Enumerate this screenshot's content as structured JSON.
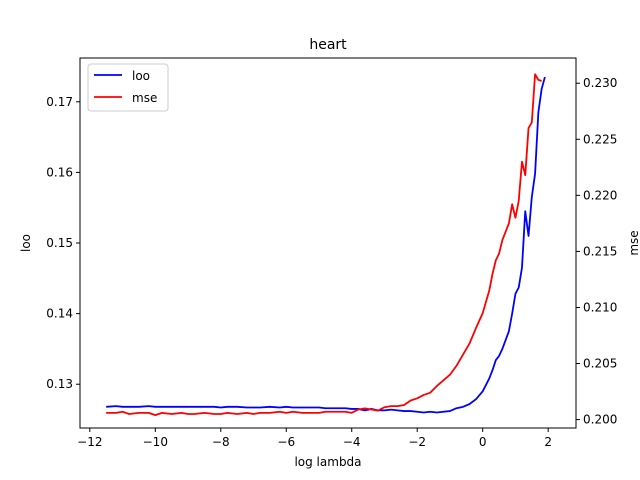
{
  "chart_data": {
    "type": "line",
    "title": "heart",
    "xlabel": "log lambda",
    "ylabel_left": "loo",
    "ylabel_right": "mse",
    "xlim": [
      -12.3,
      2.85
    ],
    "ylim_left": [
      0.1238,
      0.1762
    ],
    "ylim_right": [
      0.19925,
      0.23225
    ],
    "x_ticks": [
      -12,
      -10,
      -8,
      -6,
      -4,
      -2,
      0,
      2
    ],
    "x_tick_labels": [
      "−12",
      "−10",
      "−8",
      "−6",
      "−4",
      "−2",
      "0",
      "2"
    ],
    "y_left_ticks": [
      0.13,
      0.14,
      0.15,
      0.16,
      0.17
    ],
    "y_left_tick_labels": [
      "0.13",
      "0.14",
      "0.15",
      "0.16",
      "0.17"
    ],
    "y_right_ticks": [
      0.2,
      0.205,
      0.21,
      0.215,
      0.22,
      0.225,
      0.23
    ],
    "y_right_tick_labels": [
      "0.200",
      "0.205",
      "0.210",
      "0.215",
      "0.220",
      "0.225",
      "0.230"
    ],
    "grid": false,
    "legend_position": "top-left",
    "series": [
      {
        "name": "loo",
        "axis": "left",
        "color": "#0000ff",
        "points": [
          [
            -11.5,
            0.1268
          ],
          [
            -11.2,
            0.1269
          ],
          [
            -11.0,
            0.1268
          ],
          [
            -10.8,
            0.1268
          ],
          [
            -10.5,
            0.1268
          ],
          [
            -10.2,
            0.1269
          ],
          [
            -10.0,
            0.1268
          ],
          [
            -9.8,
            0.1268
          ],
          [
            -9.5,
            0.1268
          ],
          [
            -9.2,
            0.1268
          ],
          [
            -9.0,
            0.1268
          ],
          [
            -8.8,
            0.1268
          ],
          [
            -8.5,
            0.1268
          ],
          [
            -8.2,
            0.1268
          ],
          [
            -8.0,
            0.1267
          ],
          [
            -7.8,
            0.1268
          ],
          [
            -7.5,
            0.1268
          ],
          [
            -7.2,
            0.1267
          ],
          [
            -7.0,
            0.1267
          ],
          [
            -6.8,
            0.1267
          ],
          [
            -6.5,
            0.1268
          ],
          [
            -6.2,
            0.1267
          ],
          [
            -6.0,
            0.1268
          ],
          [
            -5.8,
            0.1267
          ],
          [
            -5.5,
            0.1267
          ],
          [
            -5.2,
            0.1267
          ],
          [
            -5.0,
            0.1267
          ],
          [
            -4.8,
            0.1266
          ],
          [
            -4.5,
            0.1266
          ],
          [
            -4.2,
            0.1266
          ],
          [
            -4.0,
            0.1265
          ],
          [
            -3.8,
            0.1265
          ],
          [
            -3.6,
            0.1263
          ],
          [
            -3.4,
            0.1265
          ],
          [
            -3.2,
            0.1263
          ],
          [
            -3.0,
            0.1263
          ],
          [
            -2.8,
            0.1264
          ],
          [
            -2.6,
            0.1263
          ],
          [
            -2.4,
            0.1262
          ],
          [
            -2.2,
            0.1262
          ],
          [
            -2.0,
            0.1261
          ],
          [
            -1.8,
            0.126
          ],
          [
            -1.6,
            0.1261
          ],
          [
            -1.4,
            0.126
          ],
          [
            -1.2,
            0.1261
          ],
          [
            -1.0,
            0.1262
          ],
          [
            -0.8,
            0.1266
          ],
          [
            -0.6,
            0.1268
          ],
          [
            -0.4,
            0.1272
          ],
          [
            -0.2,
            0.1279
          ],
          [
            0.0,
            0.129
          ],
          [
            0.2,
            0.1308
          ],
          [
            0.3,
            0.132
          ],
          [
            0.4,
            0.1334
          ],
          [
            0.5,
            0.134
          ],
          [
            0.6,
            0.135
          ],
          [
            0.8,
            0.1375
          ],
          [
            0.9,
            0.14
          ],
          [
            1.0,
            0.1428
          ],
          [
            1.1,
            0.1437
          ],
          [
            1.2,
            0.1465
          ],
          [
            1.3,
            0.1545
          ],
          [
            1.4,
            0.151
          ],
          [
            1.5,
            0.1565
          ],
          [
            1.6,
            0.1598
          ],
          [
            1.7,
            0.1685
          ],
          [
            1.8,
            0.1718
          ],
          [
            1.9,
            0.1735
          ]
        ]
      },
      {
        "name": "mse",
        "axis": "right",
        "color": "#ff0000",
        "points": [
          [
            -11.5,
            0.2006
          ],
          [
            -11.2,
            0.2006
          ],
          [
            -11.0,
            0.2007
          ],
          [
            -10.8,
            0.2005
          ],
          [
            -10.5,
            0.2006
          ],
          [
            -10.2,
            0.2006
          ],
          [
            -10.0,
            0.2004
          ],
          [
            -9.8,
            0.2006
          ],
          [
            -9.5,
            0.2005
          ],
          [
            -9.2,
            0.2006
          ],
          [
            -9.0,
            0.2005
          ],
          [
            -8.8,
            0.2005
          ],
          [
            -8.5,
            0.2006
          ],
          [
            -8.2,
            0.2005
          ],
          [
            -8.0,
            0.2005
          ],
          [
            -7.8,
            0.2006
          ],
          [
            -7.5,
            0.2005
          ],
          [
            -7.2,
            0.2006
          ],
          [
            -7.0,
            0.2005
          ],
          [
            -6.8,
            0.2006
          ],
          [
            -6.5,
            0.2006
          ],
          [
            -6.2,
            0.2007
          ],
          [
            -6.0,
            0.2006
          ],
          [
            -5.8,
            0.2007
          ],
          [
            -5.5,
            0.2006
          ],
          [
            -5.2,
            0.2006
          ],
          [
            -5.0,
            0.2006
          ],
          [
            -4.8,
            0.2007
          ],
          [
            -4.5,
            0.2007
          ],
          [
            -4.2,
            0.2007
          ],
          [
            -4.0,
            0.2006
          ],
          [
            -3.8,
            0.2009
          ],
          [
            -3.6,
            0.201
          ],
          [
            -3.4,
            0.2009
          ],
          [
            -3.2,
            0.2008
          ],
          [
            -3.0,
            0.2011
          ],
          [
            -2.8,
            0.2012
          ],
          [
            -2.6,
            0.2012
          ],
          [
            -2.4,
            0.2013
          ],
          [
            -2.2,
            0.2017
          ],
          [
            -2.0,
            0.2019
          ],
          [
            -1.8,
            0.2022
          ],
          [
            -1.6,
            0.2024
          ],
          [
            -1.4,
            0.203
          ],
          [
            -1.2,
            0.2035
          ],
          [
            -1.0,
            0.204
          ],
          [
            -0.8,
            0.2048
          ],
          [
            -0.6,
            0.2058
          ],
          [
            -0.4,
            0.2068
          ],
          [
            -0.2,
            0.2082
          ],
          [
            0.0,
            0.2095
          ],
          [
            0.2,
            0.2115
          ],
          [
            0.3,
            0.213
          ],
          [
            0.4,
            0.2142
          ],
          [
            0.5,
            0.2148
          ],
          [
            0.6,
            0.216
          ],
          [
            0.8,
            0.2175
          ],
          [
            0.9,
            0.2192
          ],
          [
            1.0,
            0.218
          ],
          [
            1.1,
            0.2195
          ],
          [
            1.2,
            0.223
          ],
          [
            1.3,
            0.2218
          ],
          [
            1.4,
            0.226
          ],
          [
            1.5,
            0.2265
          ],
          [
            1.6,
            0.2308
          ],
          [
            1.7,
            0.2303
          ],
          [
            1.8,
            0.2302
          ]
        ]
      }
    ]
  }
}
